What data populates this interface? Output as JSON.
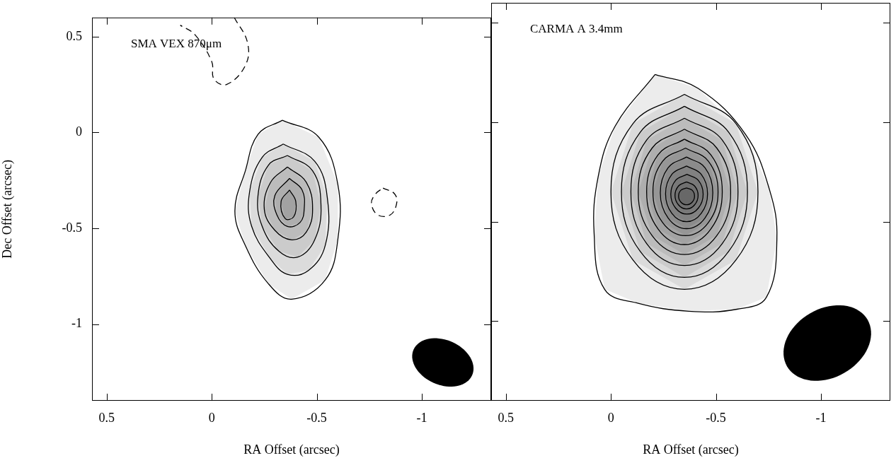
{
  "chart_data": [
    {
      "type": "contour",
      "title": "SMA VEX 870μm",
      "x_label": "RA Offset (arcsec)",
      "y_label": "Dec Offset (arcsec)",
      "xlim": [
        0.57,
        -1.33
      ],
      "ylim": [
        -1.4,
        0.6
      ],
      "xticks": [
        0.5,
        0,
        -0.5,
        -1
      ],
      "yticks": [
        0.5,
        0,
        -0.5,
        -1
      ],
      "grid": false,
      "series": [
        {
          "color": "#000000",
          "line_style": "solid",
          "x": [
            -0.336,
            -0.51,
            -0.6,
            -0.6,
            -0.54,
            -0.38,
            -0.27,
            -0.16,
            -0.11,
            -0.16,
            -0.22,
            -0.336
          ],
          "y": [
            0.064,
            -0.025,
            -0.27,
            -0.56,
            -0.77,
            -0.87,
            -0.79,
            -0.59,
            -0.41,
            -0.2,
            -0.01,
            0.064
          ]
        },
        {
          "color": "#000000",
          "line_style": "solid",
          "x": [
            -0.34,
            -0.49,
            -0.55,
            -0.54,
            -0.46,
            -0.36,
            -0.28,
            -0.19,
            -0.18,
            -0.24,
            -0.34
          ],
          "y": [
            -0.06,
            -0.15,
            -0.34,
            -0.59,
            -0.72,
            -0.74,
            -0.66,
            -0.49,
            -0.31,
            -0.13,
            -0.06
          ]
        },
        {
          "color": "#000000",
          "line_style": "solid",
          "x": [
            -0.36,
            -0.48,
            -0.52,
            -0.49,
            -0.41,
            -0.32,
            -0.24,
            -0.22,
            -0.27,
            -0.36
          ],
          "y": [
            -0.12,
            -0.2,
            -0.38,
            -0.56,
            -0.65,
            -0.62,
            -0.49,
            -0.33,
            -0.17,
            -0.12
          ]
        },
        {
          "color": "#000000",
          "line_style": "solid",
          "x": [
            -0.36,
            -0.45,
            -0.48,
            -0.45,
            -0.38,
            -0.3,
            -0.25,
            -0.28,
            -0.36
          ],
          "y": [
            -0.18,
            -0.26,
            -0.4,
            -0.52,
            -0.56,
            -0.51,
            -0.4,
            -0.26,
            -0.18
          ]
        },
        {
          "color": "#000000",
          "line_style": "solid",
          "x": [
            -0.37,
            -0.43,
            -0.44,
            -0.42,
            -0.36,
            -0.31,
            -0.3,
            -0.37
          ],
          "y": [
            -0.24,
            -0.3,
            -0.4,
            -0.47,
            -0.49,
            -0.43,
            -0.33,
            -0.24
          ]
        },
        {
          "color": "#000000",
          "line_style": "solid",
          "x": [
            -0.37,
            -0.4,
            -0.39,
            -0.35,
            -0.33,
            -0.37
          ],
          "y": [
            -0.3,
            -0.36,
            -0.44,
            -0.45,
            -0.36,
            -0.3
          ]
        },
        {
          "color": "#000000",
          "line_style": "dashed",
          "x": [
            -0.107,
            -0.17,
            -0.16,
            -0.07,
            -0.01,
            0.0,
            0.08,
            0.15
          ],
          "y": [
            0.6,
            0.47,
            0.35,
            0.25,
            0.28,
            0.37,
            0.51,
            0.56
          ]
        },
        {
          "color": "#000000",
          "line_style": "dashed",
          "x": [
            -0.815,
            -0.87,
            -0.88,
            -0.85,
            -0.79,
            -0.76,
            -0.78,
            -0.815
          ],
          "y": [
            -0.29,
            -0.32,
            -0.37,
            -0.43,
            -0.43,
            -0.37,
            -0.32,
            -0.29
          ]
        }
      ],
      "beam": {
        "ra": -1.1,
        "dec": -1.2,
        "major": 0.31,
        "minor": 0.23,
        "pa": 60
      }
    },
    {
      "type": "contour",
      "title": "CARMA A 3.4mm",
      "x_label": "RA Offset (arcsec)",
      "xlim": [
        0.57,
        -1.33
      ],
      "ylim": [
        -1.4,
        0.6
      ],
      "xticks": [
        0.5,
        0,
        -0.5,
        -1
      ],
      "yticks": [
        0.5,
        0,
        -0.5,
        -1
      ],
      "grid": false,
      "tick_labels": "x",
      "series": [
        {
          "color": "#000000",
          "line_style": "solid",
          "x": [
            -0.21,
            -0.415,
            -0.64,
            -0.755,
            -0.79,
            -0.74,
            -0.6,
            -0.37,
            -0.13,
            0.03,
            0.08,
            0.06,
            -0.02,
            -0.21
          ],
          "y": [
            0.24,
            0.17,
            -0.06,
            -0.34,
            -0.59,
            -0.88,
            -0.94,
            -0.95,
            -0.91,
            -0.84,
            -0.56,
            -0.27,
            -0.02,
            0.24
          ]
        },
        {
          "color": "#000000",
          "line_style": "solid",
          "x": [
            -0.35,
            -0.595,
            -0.7,
            -0.595,
            -0.35,
            -0.105,
            0.0,
            -0.105,
            -0.35
          ],
          "y": [
            0.14,
            -0.007,
            -0.35,
            -0.693,
            -0.84,
            -0.693,
            -0.35,
            -0.007,
            0.14
          ]
        },
        {
          "color": "#000000",
          "line_style": "solid",
          "x": [
            -0.35,
            -0.56,
            -0.65,
            -0.56,
            -0.35,
            -0.14,
            -0.05,
            -0.14,
            -0.35
          ],
          "y": [
            0.08,
            -0.05,
            -0.35,
            -0.65,
            -0.78,
            -0.65,
            -0.35,
            -0.05,
            0.08
          ]
        },
        {
          "color": "#000000",
          "line_style": "solid",
          "x": [
            -0.35,
            -0.53,
            -0.605,
            -0.53,
            -0.35,
            -0.17,
            -0.095,
            -0.17,
            -0.35
          ],
          "y": [
            0.02,
            -0.09,
            -0.35,
            -0.61,
            -0.72,
            -0.61,
            -0.35,
            -0.09,
            0.02
          ]
        },
        {
          "color": "#000000",
          "line_style": "solid",
          "x": [
            -0.35,
            -0.504,
            -0.57,
            -0.504,
            -0.35,
            -0.196,
            -0.13,
            -0.196,
            -0.35
          ],
          "y": [
            -0.035,
            -0.13,
            -0.35,
            -0.57,
            -0.665,
            -0.57,
            -0.35,
            -0.13,
            -0.035
          ]
        },
        {
          "color": "#000000",
          "line_style": "solid",
          "x": [
            -0.35,
            -0.476,
            -0.53,
            -0.476,
            -0.35,
            -0.224,
            -0.17,
            -0.224,
            -0.35
          ],
          "y": [
            -0.085,
            -0.164,
            -0.35,
            -0.536,
            -0.615,
            -0.536,
            -0.35,
            -0.164,
            -0.085
          ]
        },
        {
          "color": "#000000",
          "line_style": "solid",
          "x": [
            -0.355,
            -0.464,
            -0.51,
            -0.464,
            -0.355,
            -0.246,
            -0.2,
            -0.246,
            -0.355
          ],
          "y": [
            -0.13,
            -0.196,
            -0.35,
            -0.504,
            -0.57,
            -0.504,
            -0.35,
            -0.196,
            -0.13
          ]
        },
        {
          "color": "#000000",
          "line_style": "solid",
          "x": [
            -0.36,
            -0.448,
            -0.485,
            -0.448,
            -0.36,
            -0.272,
            -0.235,
            -0.272,
            -0.36
          ],
          "y": [
            -0.175,
            -0.229,
            -0.355,
            -0.481,
            -0.535,
            -0.481,
            -0.355,
            -0.229,
            -0.175
          ]
        },
        {
          "color": "#000000",
          "line_style": "solid",
          "x": [
            -0.36,
            -0.43,
            -0.46,
            -0.43,
            -0.36,
            -0.29,
            -0.26,
            -0.29,
            -0.36
          ],
          "y": [
            -0.22,
            -0.262,
            -0.36,
            -0.458,
            -0.5,
            -0.458,
            -0.36,
            -0.262,
            -0.22
          ]
        },
        {
          "color": "#000000",
          "line_style": "solid",
          "x": [
            -0.362,
            -0.416,
            -0.439,
            -0.416,
            -0.362,
            -0.308,
            -0.285,
            -0.308,
            -0.362
          ],
          "y": [
            -0.262,
            -0.292,
            -0.362,
            -0.432,
            -0.462,
            -0.432,
            -0.362,
            -0.292,
            -0.262
          ]
        },
        {
          "color": "#000000",
          "line_style": "solid",
          "x": [
            -0.36,
            -0.398,
            -0.415,
            -0.398,
            -0.36,
            -0.322,
            -0.305,
            -0.322,
            -0.36
          ],
          "y": [
            -0.3,
            -0.32,
            -0.368,
            -0.416,
            -0.436,
            -0.416,
            -0.368,
            -0.32,
            -0.3
          ]
        },
        {
          "color": "#000000",
          "line_style": "solid",
          "x": [
            -0.36,
            -0.387,
            -0.398,
            -0.387,
            -0.36,
            -0.333,
            -0.322,
            -0.333,
            -0.36
          ],
          "y": [
            -0.33,
            -0.342,
            -0.372,
            -0.402,
            -0.415,
            -0.402,
            -0.372,
            -0.342,
            -0.33
          ]
        }
      ],
      "beam": {
        "ra": -1.03,
        "dec": -1.11,
        "major": 0.45,
        "minor": 0.34,
        "pa": -55
      }
    }
  ]
}
